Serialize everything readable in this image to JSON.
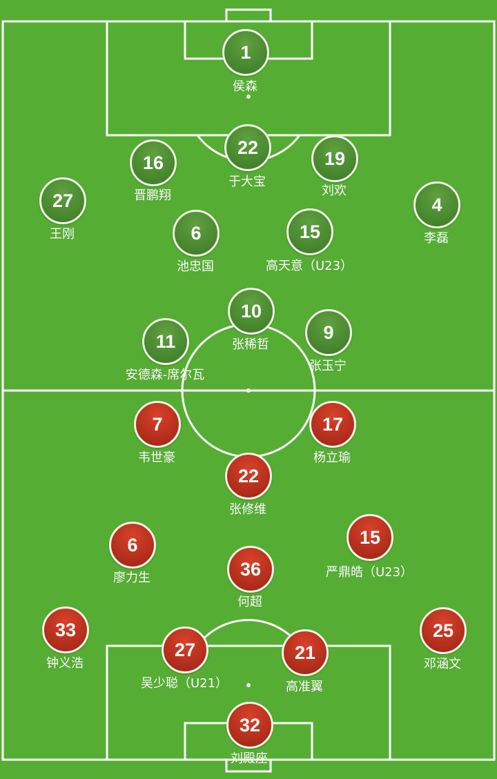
{
  "colors": {
    "pitch": "#55ad33",
    "lines": "#ffffff",
    "home_team": "#3f7f28",
    "away_team": "#c0321e"
  },
  "home_team": {
    "players": [
      {
        "number": "1",
        "name": "侯森"
      },
      {
        "number": "22",
        "name": "于大宝"
      },
      {
        "number": "16",
        "name": "晋鹏翔"
      },
      {
        "number": "19",
        "name": "刘欢"
      },
      {
        "number": "27",
        "name": "王刚"
      },
      {
        "number": "4",
        "name": "李磊"
      },
      {
        "number": "6",
        "name": "池忠国"
      },
      {
        "number": "15",
        "name": "高天意（U23）"
      },
      {
        "number": "10",
        "name": "张稀哲"
      },
      {
        "number": "11",
        "name": "安德森-席尔瓦"
      },
      {
        "number": "9",
        "name": "张玉宁"
      }
    ]
  },
  "away_team": {
    "players": [
      {
        "number": "7",
        "name": "韦世豪"
      },
      {
        "number": "17",
        "name": "杨立瑜"
      },
      {
        "number": "22",
        "name": "张修维"
      },
      {
        "number": "6",
        "name": "廖力生"
      },
      {
        "number": "15",
        "name": "严鼎皓（U23）"
      },
      {
        "number": "36",
        "name": "何超"
      },
      {
        "number": "33",
        "name": "钟义浩"
      },
      {
        "number": "25",
        "name": "邓涵文"
      },
      {
        "number": "27",
        "name": "吴少聪（U21）"
      },
      {
        "number": "21",
        "name": "高准翼"
      },
      {
        "number": "32",
        "name": "刘殿座"
      }
    ]
  }
}
